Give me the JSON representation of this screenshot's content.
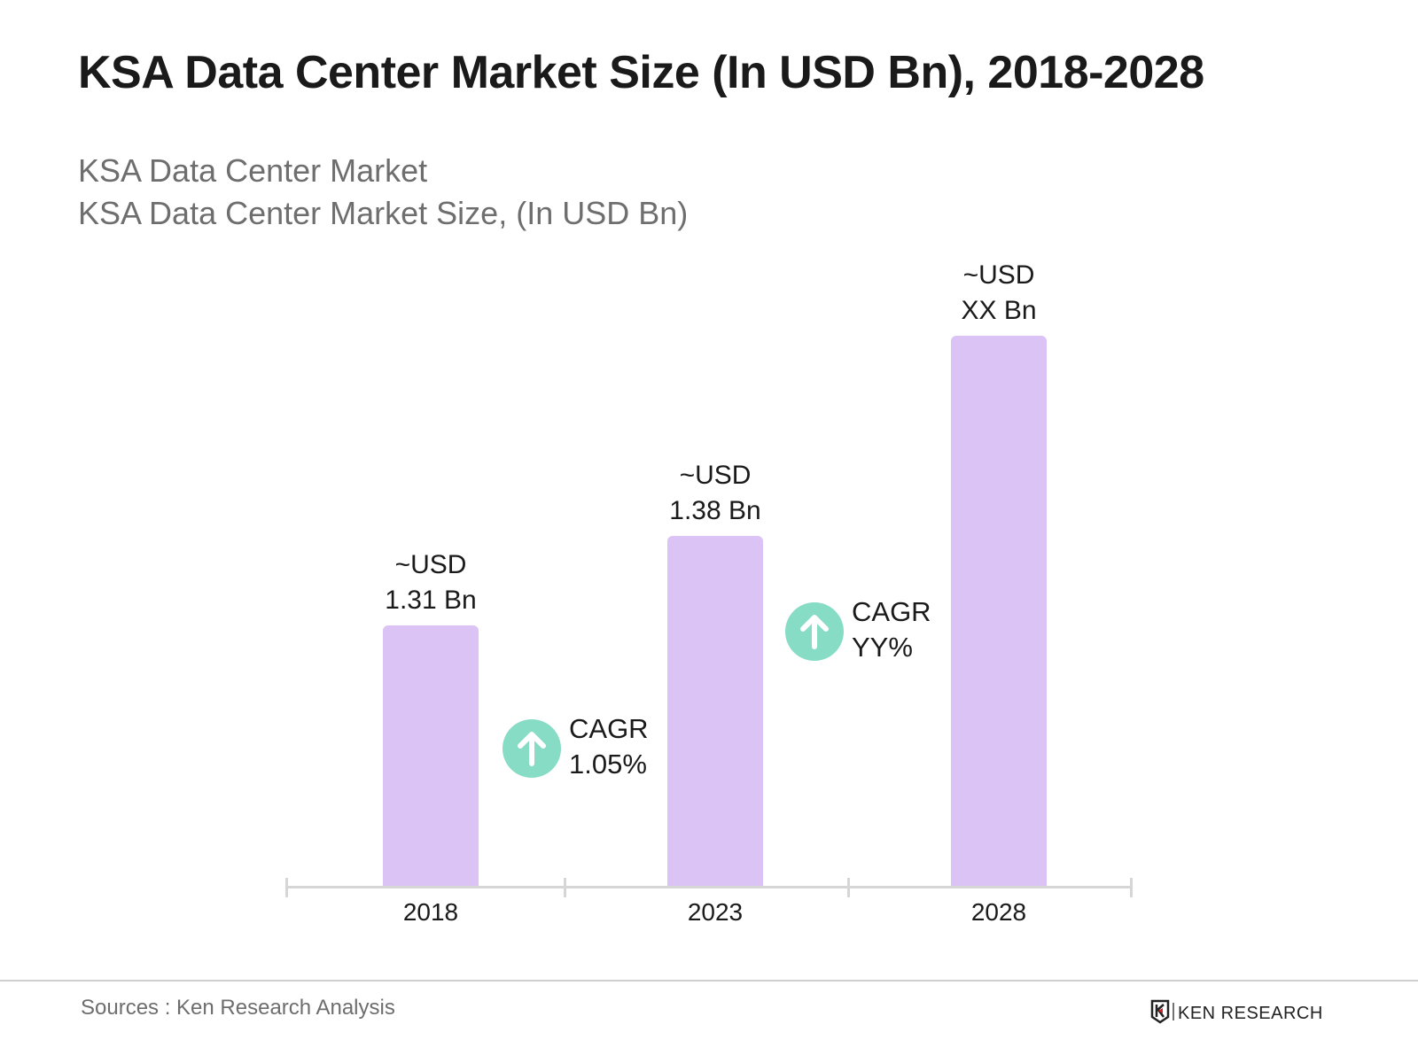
{
  "chart_data": {
    "type": "bar",
    "title": "KSA Data Center Market Size (In USD Bn), 2018-2028",
    "subtitle": [
      "KSA Data Center Market",
      "KSA Data Center Market Size, (In USD Bn)"
    ],
    "categories": [
      "2018",
      "2023",
      "2028"
    ],
    "values": [
      1.31,
      1.38,
      null
    ],
    "data_labels": [
      {
        "line1": "~USD",
        "line2": "1.31 Bn"
      },
      {
        "line1": "~USD",
        "line2": "1.38 Bn"
      },
      {
        "line1": "~USD",
        "line2": "XX Bn"
      }
    ],
    "annotations": [
      {
        "label": "CAGR",
        "value": "1.05%",
        "icon": "arrow-up-icon"
      },
      {
        "label": "CAGR",
        "value": "YY%",
        "icon": "arrow-up-icon"
      }
    ],
    "xlabel": "",
    "ylabel": "",
    "grid": false,
    "colors": {
      "bar": "#dcc3f5",
      "cagr_circle": "#86dcc4",
      "axis": "#d6d6d6"
    }
  },
  "footer": {
    "source": "Sources : Ken Research Analysis",
    "logo_text": "KEN RESEARCH"
  }
}
